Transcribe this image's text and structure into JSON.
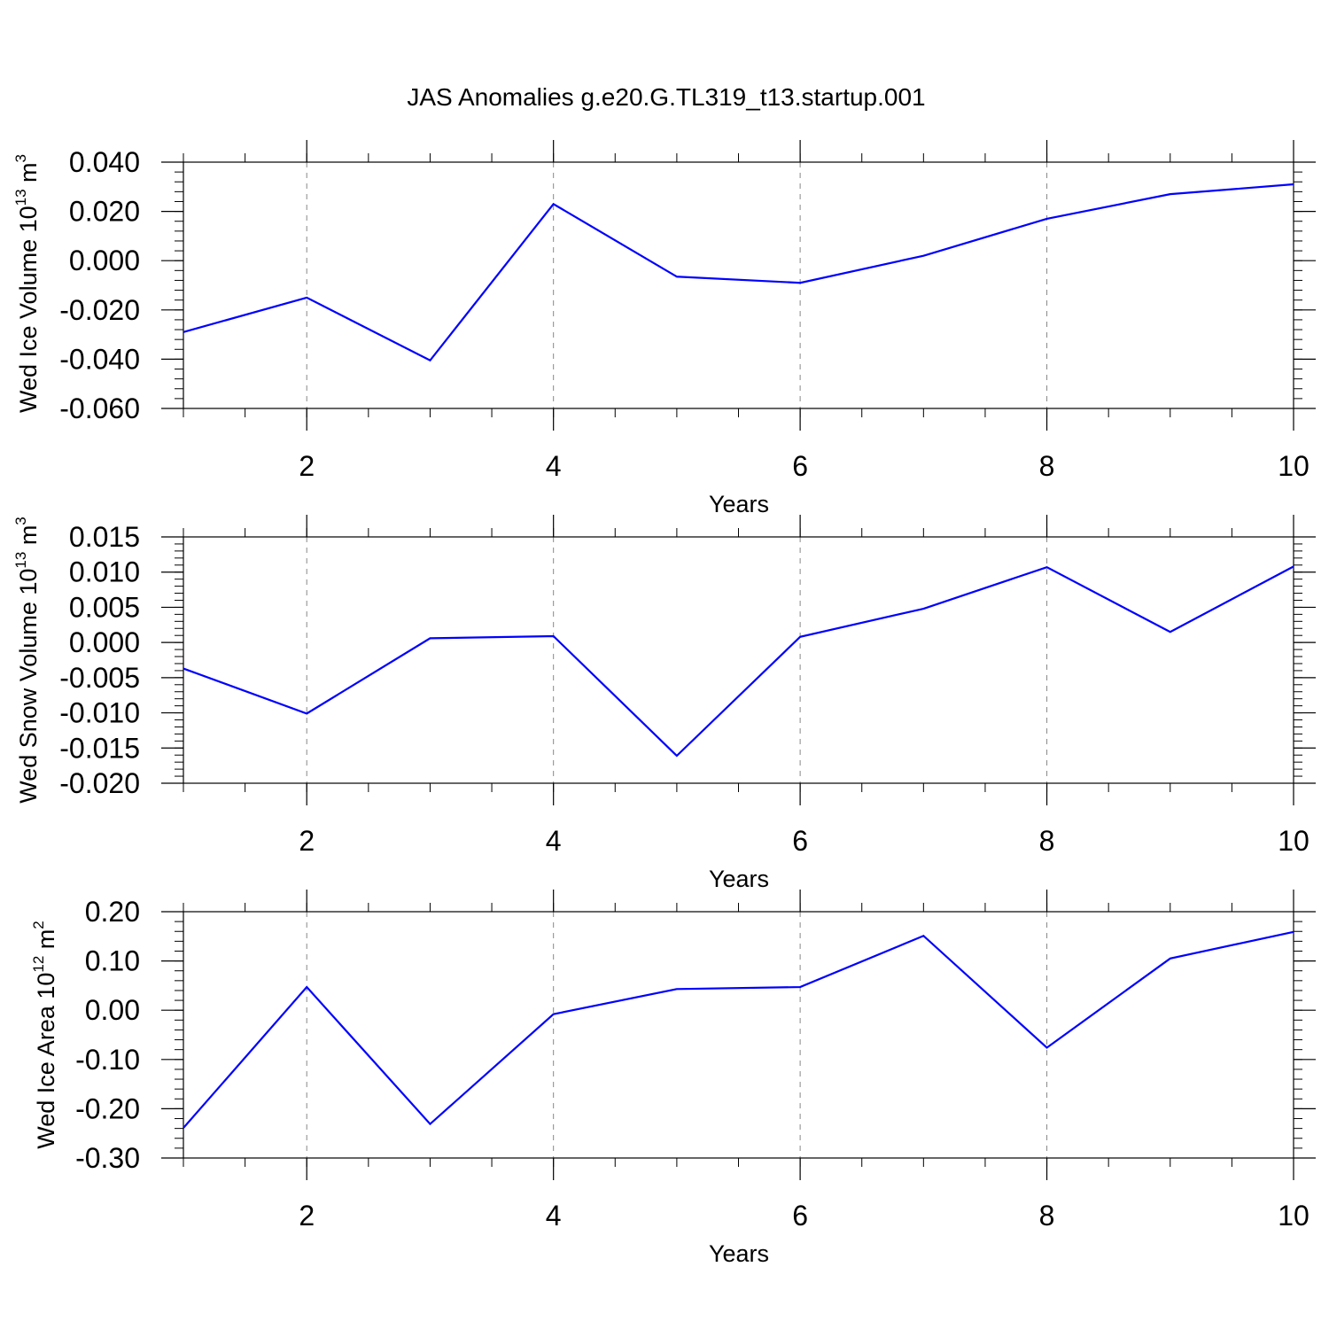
{
  "title": "JAS Anomalies g.e20.G.TL319_t13.startup.001",
  "style": {
    "line_color": "#0000ff",
    "grid_color": "#888888",
    "axis_color": "#000000"
  },
  "chart_data": [
    {
      "type": "line",
      "title": "JAS Anomalies g.e20.G.TL319_t13.startup.001",
      "xlabel": "Years",
      "ylabel": {
        "text": "Wed Ice Volume 10",
        "sup1": "13",
        "mid": " m",
        "sup2": "3"
      },
      "xlim": [
        1,
        10
      ],
      "ylim": [
        -0.06,
        0.04
      ],
      "xticks": [
        2,
        4,
        6,
        8,
        10
      ],
      "yticks": [
        -0.06,
        -0.04,
        -0.02,
        0.0,
        0.02,
        0.04
      ],
      "ytick_labels": [
        "-0.060",
        "-0.040",
        "-0.020",
        "0.000",
        "0.020",
        "0.040"
      ],
      "ymajor_step": 0.02,
      "yminor_step": 0.004,
      "grid": "vertical dashed at major x ticks",
      "series": [
        {
          "x": [
            1,
            2,
            3,
            4,
            5,
            6,
            7,
            8,
            9,
            10
          ],
          "y": [
            -0.029,
            -0.015,
            -0.0405,
            0.023,
            -0.0065,
            -0.009,
            0.002,
            0.017,
            0.027,
            0.031
          ]
        }
      ]
    },
    {
      "type": "line",
      "xlabel": "Years",
      "ylabel": {
        "text": "Wed Snow Volume 10",
        "sup1": "13",
        "mid": " m",
        "sup2": "3"
      },
      "xlim": [
        1,
        10
      ],
      "ylim": [
        -0.02,
        0.015
      ],
      "xticks": [
        2,
        4,
        6,
        8,
        10
      ],
      "yticks": [
        -0.02,
        -0.015,
        -0.01,
        -0.005,
        0.0,
        0.005,
        0.01,
        0.015
      ],
      "ytick_labels": [
        "-0.020",
        "-0.015",
        "-0.010",
        "-0.005",
        "0.000",
        "0.005",
        "0.010",
        "0.015"
      ],
      "ymajor_step": 0.005,
      "yminor_step": 0.001,
      "grid": "vertical dashed at major x ticks",
      "series": [
        {
          "x": [
            1,
            2,
            3,
            4,
            5,
            6,
            7,
            8,
            9,
            10
          ],
          "y": [
            -0.0037,
            -0.0101,
            0.0006,
            0.0009,
            -0.0161,
            0.0008,
            0.0048,
            0.0107,
            0.0015,
            0.0108
          ]
        }
      ]
    },
    {
      "type": "line",
      "xlabel": "Years",
      "ylabel": {
        "text": "Wed Ice Area 10",
        "sup1": "12",
        "mid": " m",
        "sup2": "2"
      },
      "xlim": [
        1,
        10
      ],
      "ylim": [
        -0.3,
        0.2
      ],
      "xticks": [
        2,
        4,
        6,
        8,
        10
      ],
      "yticks": [
        -0.3,
        -0.2,
        -0.1,
        0.0,
        0.1,
        0.2
      ],
      "ytick_labels": [
        "-0.30",
        "-0.20",
        "-0.10",
        "0.00",
        "0.10",
        "0.20"
      ],
      "ymajor_step": 0.1,
      "yminor_step": 0.02,
      "grid": "vertical dashed at major x ticks",
      "series": [
        {
          "x": [
            1,
            2,
            3,
            4,
            5,
            6,
            7,
            8,
            9,
            10
          ],
          "y": [
            -0.239,
            0.047,
            -0.231,
            -0.008,
            0.043,
            0.047,
            0.151,
            -0.076,
            0.105,
            0.159
          ]
        }
      ]
    }
  ]
}
